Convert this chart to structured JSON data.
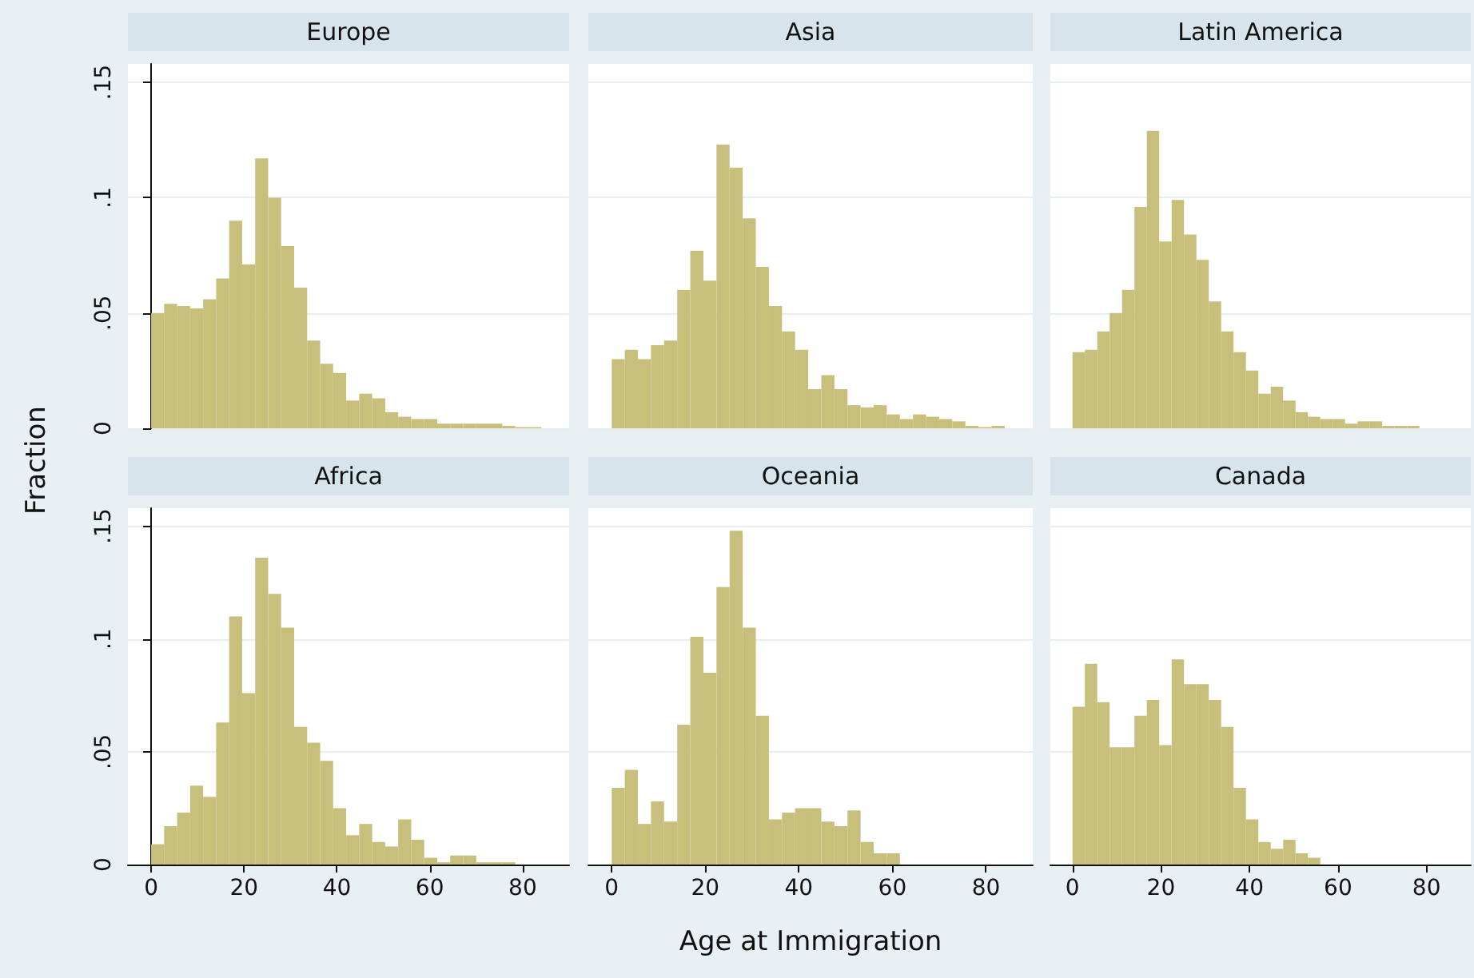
{
  "chart_data": [
    {
      "type": "histogram",
      "title": "Europe",
      "ylabel": "Fraction",
      "color": "#c9bf7d",
      "bins": [
        0,
        2.8,
        5.6,
        8.4,
        11.2,
        14,
        16.8,
        19.6,
        22.4,
        25.2,
        28,
        30.8,
        33.6,
        36.4,
        39.2,
        42,
        44.8,
        47.6,
        50.4,
        53.2,
        56,
        58.8,
        61.6,
        64.4,
        67.2,
        70,
        72.8,
        75.6,
        78.4,
        81.2,
        84
      ],
      "values": [
        0.05,
        0.054,
        0.053,
        0.052,
        0.056,
        0.065,
        0.09,
        0.071,
        0.117,
        0.1,
        0.079,
        0.061,
        0.038,
        0.028,
        0.024,
        0.012,
        0.015,
        0.013,
        0.007,
        0.005,
        0.004,
        0.004,
        0.002,
        0.002,
        0.002,
        0.002,
        0.002,
        0.001,
        0.0005,
        0.0005
      ],
      "xlim": [
        -5,
        90
      ],
      "ylim": [
        0,
        0.158
      ],
      "yticks": [
        0,
        {
          "value": 0.05,
          "label": ".05"
        },
        {
          "value": 0.1,
          "label": ".1"
        },
        {
          "value": 0.15,
          "label": ".15"
        }
      ],
      "grid": "y",
      "tick_labels": "y"
    },
    {
      "type": "histogram",
      "title": "Asia",
      "color": "#c9bf7d",
      "bins": [
        0,
        2.8,
        5.6,
        8.4,
        11.2,
        14,
        16.8,
        19.6,
        22.4,
        25.2,
        28,
        30.8,
        33.6,
        36.4,
        39.2,
        42,
        44.8,
        47.6,
        50.4,
        53.2,
        56,
        58.8,
        61.6,
        64.4,
        67.2,
        70,
        72.8,
        75.6,
        78.4,
        81.2,
        84
      ],
      "values": [
        0.03,
        0.034,
        0.03,
        0.036,
        0.038,
        0.06,
        0.077,
        0.064,
        0.123,
        0.113,
        0.091,
        0.07,
        0.053,
        0.042,
        0.034,
        0.017,
        0.023,
        0.017,
        0.01,
        0.009,
        0.01,
        0.006,
        0.004,
        0.006,
        0.005,
        0.004,
        0.003,
        0.001,
        0.0005,
        0.001
      ],
      "xlim": [
        -5,
        90
      ],
      "ylim": [
        0,
        0.158
      ],
      "yticks": [
        0,
        0.05,
        0.1,
        0.15
      ],
      "grid": "y",
      "tick_labels": false
    },
    {
      "type": "histogram",
      "title": "Latin America",
      "color": "#c9bf7d",
      "bins": [
        0,
        2.8,
        5.6,
        8.4,
        11.2,
        14,
        16.8,
        19.6,
        22.4,
        25.2,
        28,
        30.8,
        33.6,
        36.4,
        39.2,
        42,
        44.8,
        47.6,
        50.4,
        53.2,
        56,
        58.8,
        61.6,
        64.4,
        67.2,
        70,
        72.8,
        75.6,
        78.4,
        81.2,
        84
      ],
      "values": [
        0.033,
        0.034,
        0.042,
        0.05,
        0.06,
        0.096,
        0.129,
        0.081,
        0.099,
        0.084,
        0.073,
        0.055,
        0.042,
        0.033,
        0.025,
        0.015,
        0.018,
        0.012,
        0.007,
        0.005,
        0.004,
        0.004,
        0.002,
        0.003,
        0.003,
        0.001,
        0.001,
        0.001,
        0,
        0
      ],
      "xlim": [
        -5,
        90
      ],
      "ylim": [
        0,
        0.158
      ],
      "yticks": [
        0,
        0.05,
        0.1,
        0.15
      ],
      "grid": "y",
      "tick_labels": false
    },
    {
      "type": "histogram",
      "title": "Africa",
      "color": "#c9bf7d",
      "bins": [
        0,
        2.8,
        5.6,
        8.4,
        11.2,
        14,
        16.8,
        19.6,
        22.4,
        25.2,
        28,
        30.8,
        33.6,
        36.4,
        39.2,
        42,
        44.8,
        47.6,
        50.4,
        53.2,
        56,
        58.8,
        61.6,
        64.4,
        67.2,
        70,
        72.8,
        75.6,
        78.4,
        81.2,
        84
      ],
      "values": [
        0.009,
        0.017,
        0.023,
        0.035,
        0.03,
        0.063,
        0.11,
        0.076,
        0.136,
        0.12,
        0.105,
        0.061,
        0.054,
        0.046,
        0.025,
        0.013,
        0.018,
        0.01,
        0.008,
        0.02,
        0.011,
        0.003,
        0.001,
        0.004,
        0.004,
        0.001,
        0.001,
        0.001,
        0,
        0
      ],
      "xlim": [
        -5,
        90
      ],
      "xticks": [
        0,
        20,
        40,
        60,
        80
      ],
      "ylim": [
        0,
        0.158
      ],
      "yticks": [
        0,
        {
          "value": 0.05,
          "label": ".05"
        },
        {
          "value": 0.1,
          "label": ".1"
        },
        {
          "value": 0.15,
          "label": ".15"
        }
      ],
      "grid": "y"
    },
    {
      "type": "histogram",
      "title": "Oceania",
      "xlabel": "Age at Immigration",
      "color": "#c9bf7d",
      "bins": [
        0,
        2.8,
        5.6,
        8.4,
        11.2,
        14,
        16.8,
        19.6,
        22.4,
        25.2,
        28,
        30.8,
        33.6,
        36.4,
        39.2,
        42,
        44.8,
        47.6,
        50.4,
        53.2,
        56,
        58.8,
        61.6,
        64.4,
        67.2,
        70,
        72.8,
        75.6,
        78.4,
        81.2,
        84
      ],
      "values": [
        0.034,
        0.042,
        0.018,
        0.028,
        0.019,
        0.062,
        0.101,
        0.085,
        0.123,
        0.148,
        0.105,
        0.066,
        0.02,
        0.023,
        0.025,
        0.025,
        0.019,
        0.017,
        0.024,
        0.01,
        0.005,
        0.005,
        0,
        0,
        0,
        0,
        0,
        0,
        0,
        0
      ],
      "xlim": [
        -5,
        90
      ],
      "xticks": [
        0,
        20,
        40,
        60,
        80
      ],
      "ylim": [
        0,
        0.158
      ],
      "yticks": [
        0,
        0.05,
        0.1,
        0.15
      ],
      "grid": "y",
      "tick_labels": "x"
    },
    {
      "type": "histogram",
      "title": "Canada",
      "color": "#c9bf7d",
      "bins": [
        0,
        2.8,
        5.6,
        8.4,
        11.2,
        14,
        16.8,
        19.6,
        22.4,
        25.2,
        28,
        30.8,
        33.6,
        36.4,
        39.2,
        42,
        44.8,
        47.6,
        50.4,
        53.2,
        56,
        58.8,
        61.6,
        64.4,
        67.2,
        70,
        72.8,
        75.6,
        78.4,
        81.2,
        84
      ],
      "values": [
        0.07,
        0.089,
        0.072,
        0.052,
        0.052,
        0.066,
        0.073,
        0.053,
        0.091,
        0.08,
        0.08,
        0.073,
        0.061,
        0.034,
        0.02,
        0.01,
        0.007,
        0.011,
        0.005,
        0.003,
        0,
        0,
        0,
        0,
        0,
        0,
        0,
        0,
        0,
        0
      ],
      "xlim": [
        -5,
        90
      ],
      "xticks": [
        0,
        20,
        40,
        60,
        80
      ],
      "ylim": [
        0,
        0.158
      ],
      "yticks": [
        0,
        0.05,
        0.1,
        0.15
      ],
      "grid": "y",
      "tick_labels": "x"
    }
  ]
}
